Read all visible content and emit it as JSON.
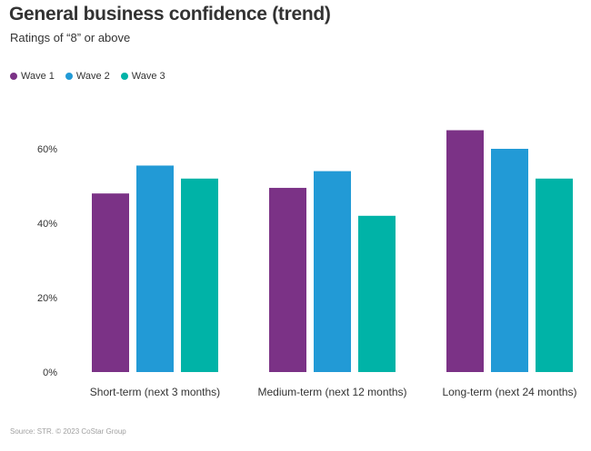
{
  "header": {
    "title": "General business confidence (trend)",
    "subtitle": "Ratings of “8” or above"
  },
  "footer": {
    "source": "Source: STR. © 2023 CoStar Group"
  },
  "chart_data": {
    "type": "bar",
    "title": "General business confidence (trend)",
    "subtitle": "Ratings of “8” or above",
    "categories": [
      "Short-term (next 3 months)",
      "Medium-term (next 12 months)",
      "Long-term (next 24 months)"
    ],
    "series": [
      {
        "name": "Wave 1",
        "color": "#7b3286",
        "values": [
          48,
          49.5,
          65
        ]
      },
      {
        "name": "Wave 2",
        "color": "#229ad6",
        "values": [
          55.5,
          54,
          60
        ]
      },
      {
        "name": "Wave 3",
        "color": "#00b3a7",
        "values": [
          52,
          42,
          52
        ]
      }
    ],
    "y_ticks": [
      "0%",
      "20%",
      "40%",
      "60%"
    ],
    "y_tick_values": [
      0,
      20,
      40,
      60
    ],
    "ylim": [
      0,
      70
    ],
    "xlabel": "",
    "ylabel": "",
    "grid": false,
    "legend_position": "top-left"
  }
}
